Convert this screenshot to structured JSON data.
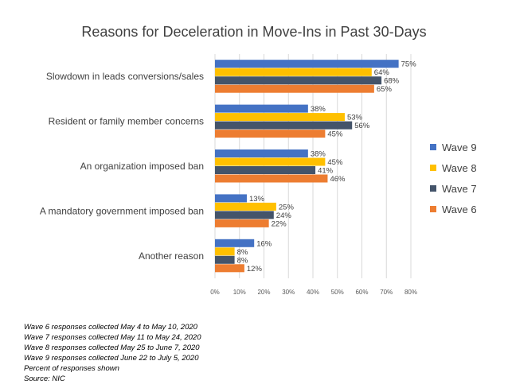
{
  "chart_data": {
    "type": "bar",
    "orientation": "horizontal",
    "title": "Reasons for Deceleration in Move-Ins in Past 30-Days",
    "categories": [
      "Slowdown in leads conversions/sales",
      "Resident or family member concerns",
      "An organization imposed ban",
      "A mandatory government imposed ban",
      "Another reason"
    ],
    "series": [
      {
        "name": "Wave 9",
        "color": "#4472C4",
        "values": [
          75,
          38,
          38,
          13,
          16
        ]
      },
      {
        "name": "Wave 8",
        "color": "#FFC000",
        "values": [
          64,
          53,
          45,
          25,
          8
        ]
      },
      {
        "name": "Wave 7",
        "color": "#44546A",
        "values": [
          68,
          56,
          41,
          24,
          8
        ]
      },
      {
        "name": "Wave 6",
        "color": "#ED7D31",
        "values": [
          65,
          45,
          46,
          22,
          12
        ]
      }
    ],
    "xlim": [
      0,
      80
    ],
    "x_ticks": [
      "0%",
      "10%",
      "20%",
      "30%",
      "40%",
      "50%",
      "60%",
      "70%",
      "80%"
    ],
    "value_suffix": "%",
    "legend_position": "right",
    "grid": "vertical"
  },
  "notes": [
    "Wave 6 responses collected May 4 to May 10, 2020",
    "Wave 7 responses collected May 11 to May 24, 2020",
    "Wave 8 responses collected May 25 to June 7, 2020",
    "Wave 9 responses collected June 22 to July 5, 2020",
    "Percent of responses shown",
    "Source: NIC"
  ]
}
